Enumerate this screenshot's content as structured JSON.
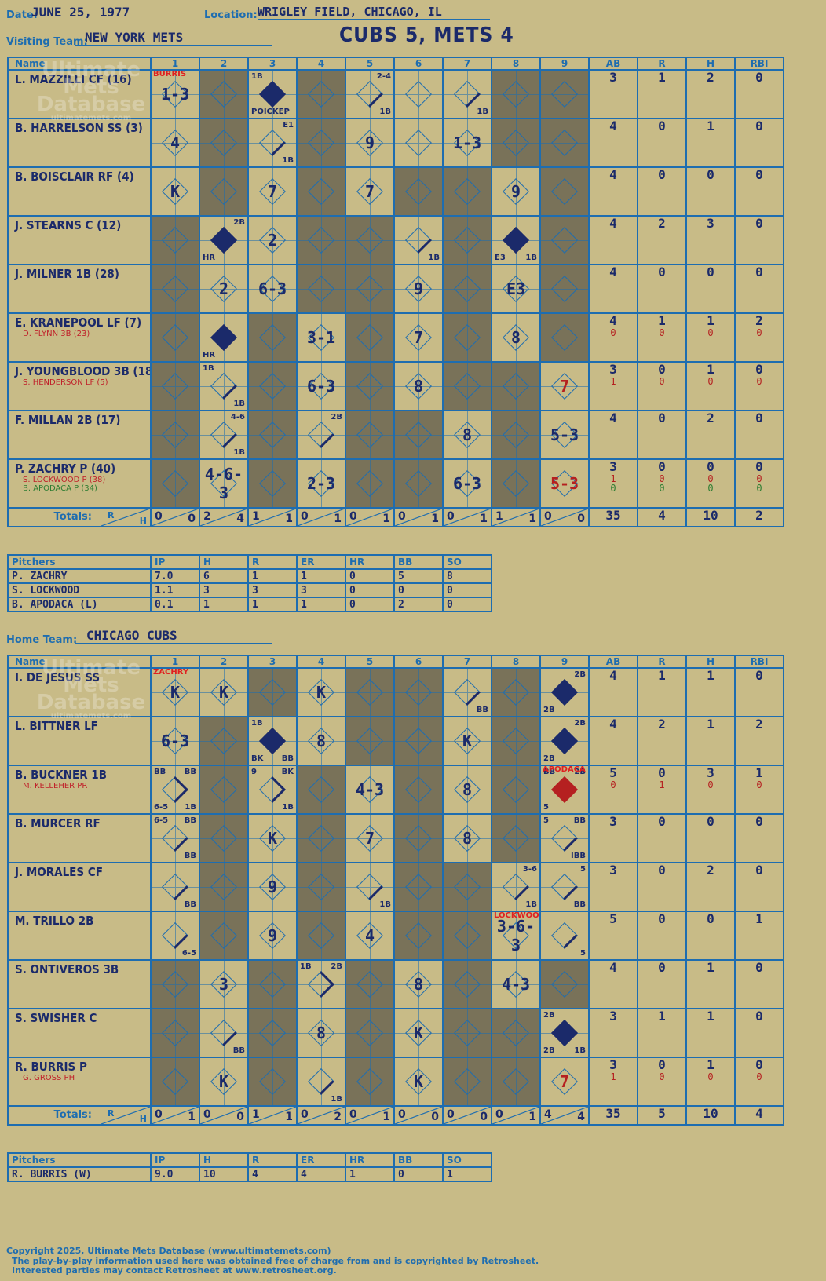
{
  "header": {
    "date_label": "Date:",
    "date": "JUNE 25, 1977",
    "location_label": "Location:",
    "location": "WRIGLEY FIELD, CHICAGO, IL",
    "visiting_label": "Visiting Team:",
    "visiting_team": "NEW YORK METS",
    "home_label": "Home Team:",
    "home_team": "CHICAGO CUBS",
    "title": "CUBS 5, METS 4"
  },
  "watermark": {
    "line1": "Ultimate",
    "line2": "Mets",
    "line3": "Database",
    "url": "ultimatemets.com"
  },
  "columns": {
    "name": "Name",
    "innings": [
      "1",
      "2",
      "3",
      "4",
      "5",
      "6",
      "7",
      "8",
      "9"
    ],
    "stats": [
      "AB",
      "R",
      "H",
      "RBI"
    ],
    "totals": "Totals:",
    "r": "R",
    "h": "H"
  },
  "visitors": {
    "players": [
      {
        "name": "L. MAZZILLI CF (16)",
        "subs": [],
        "ab": [
          "3"
        ],
        "r": [
          "1"
        ],
        "h": [
          "2"
        ],
        "rbi": [
          "0"
        ],
        "innings": [
          {
            "res": "1-3",
            "note": "BURRIS"
          },
          {
            "dark": true
          },
          {
            "dia": "fill",
            "tl": "1B",
            "bl": "POICKEP"
          },
          {
            "dark": true
          },
          {
            "dia": "b1",
            "tr": "2-4",
            "br": "1B"
          },
          {},
          {
            "dia": "b1",
            "br": "1B"
          },
          {
            "dark": true
          },
          {
            "dark": true
          }
        ]
      },
      {
        "name": "B. HARRELSON SS (3)",
        "subs": [],
        "ab": [
          "4"
        ],
        "r": [
          "0"
        ],
        "h": [
          "1"
        ],
        "rbi": [
          "0"
        ],
        "innings": [
          {
            "res": "4"
          },
          {
            "dark": true
          },
          {
            "dia": "b1",
            "tr": "E1",
            "br": "1B"
          },
          {
            "dark": true
          },
          {
            "res": "9"
          },
          {},
          {
            "res": "1-3"
          },
          {
            "dark": true
          },
          {
            "dark": true
          }
        ]
      },
      {
        "name": "B. BOISCLAIR RF (4)",
        "subs": [],
        "ab": [
          "4"
        ],
        "r": [
          "0"
        ],
        "h": [
          "0"
        ],
        "rbi": [
          "0"
        ],
        "innings": [
          {
            "res": "K"
          },
          {
            "dark": true
          },
          {
            "res": "7"
          },
          {
            "dark": true
          },
          {
            "res": "7"
          },
          {
            "dark": true
          },
          {
            "dark": true
          },
          {
            "res": "9"
          },
          {
            "dark": true
          }
        ]
      },
      {
        "name": "J. STEARNS C (12)",
        "subs": [],
        "ab": [
          "4"
        ],
        "r": [
          "2"
        ],
        "h": [
          "3"
        ],
        "rbi": [
          "0"
        ],
        "innings": [
          {
            "dark": true
          },
          {
            "dia": "fill",
            "tr": "2B",
            "bl": "HR"
          },
          {
            "res": "2"
          },
          {
            "dark": true
          },
          {
            "dark": true
          },
          {
            "dia": "b1",
            "br": "1B"
          },
          {
            "dark": true
          },
          {
            "dia": "fill",
            "bl": "E3",
            "br": "1B"
          },
          {
            "dark": true
          }
        ]
      },
      {
        "name": "J. MILNER 1B (28)",
        "subs": [],
        "ab": [
          "4"
        ],
        "r": [
          "0"
        ],
        "h": [
          "0"
        ],
        "rbi": [
          "0"
        ],
        "innings": [
          {
            "dark": true
          },
          {
            "res": "2"
          },
          {
            "res": "6-3"
          },
          {
            "dark": true
          },
          {
            "dark": true
          },
          {
            "res": "9"
          },
          {
            "dark": true
          },
          {
            "res": "E3"
          },
          {
            "dark": true
          }
        ]
      },
      {
        "name": "E. KRANEPOOL LF (7)",
        "subs": [
          "D. FLYNN 3B (23)"
        ],
        "ab": [
          "4",
          "0"
        ],
        "r": [
          "1",
          "0"
        ],
        "h": [
          "1",
          "0"
        ],
        "rbi": [
          "2",
          "0"
        ],
        "innings": [
          {
            "dark": true
          },
          {
            "dia": "fill",
            "bl": "HR"
          },
          {
            "dark": true
          },
          {
            "res": "3-1"
          },
          {
            "dark": true
          },
          {
            "res": "7"
          },
          {
            "dark": true
          },
          {
            "res": "8"
          },
          {
            "dark": true
          }
        ]
      },
      {
        "name": "J. YOUNGBLOOD 3B (18)",
        "subs": [
          "S. HENDERSON LF (5)"
        ],
        "ab": [
          "3",
          "1"
        ],
        "r": [
          "0",
          "0"
        ],
        "h": [
          "1",
          "0"
        ],
        "rbi": [
          "0",
          "0"
        ],
        "innings": [
          {
            "dark": true
          },
          {
            "dia": "b1",
            "tl": "1B",
            "br": "1B"
          },
          {
            "dark": true
          },
          {
            "res": "6-3"
          },
          {
            "dark": true
          },
          {
            "res": "8"
          },
          {
            "dark": true
          },
          {
            "dark": true
          },
          {
            "res": "7",
            "red": true
          }
        ]
      },
      {
        "name": "F. MILLAN 2B (17)",
        "subs": [],
        "ab": [
          "4"
        ],
        "r": [
          "0"
        ],
        "h": [
          "2"
        ],
        "rbi": [
          "0"
        ],
        "innings": [
          {
            "dark": true
          },
          {
            "dia": "b1",
            "tr": "4-6",
            "br": "1B"
          },
          {
            "dark": true
          },
          {
            "dia": "b1",
            "tr": "2B"
          },
          {
            "dark": true
          },
          {
            "dark": true
          },
          {
            "res": "8"
          },
          {
            "dark": true
          },
          {
            "res": "5-3"
          }
        ]
      },
      {
        "name": "P. ZACHRY P (40)",
        "subs": [
          "S. LOCKWOOD P (38)",
          "B. APODACA P (34)"
        ],
        "ab": [
          "3",
          "1",
          "0"
        ],
        "r": [
          "0",
          "0",
          "0"
        ],
        "h": [
          "0",
          "0",
          "0"
        ],
        "rbi": [
          "0",
          "0",
          "0"
        ],
        "innings": [
          {
            "dark": true
          },
          {
            "res": "4-6-3"
          },
          {
            "dark": true
          },
          {
            "res": "2-3"
          },
          {
            "dark": true
          },
          {
            "dark": true
          },
          {
            "res": "6-3"
          },
          {
            "dark": true
          },
          {
            "res": "5-3",
            "red": true
          }
        ]
      }
    ],
    "totals": {
      "innings": [
        [
          "0",
          "0"
        ],
        [
          "2",
          "4"
        ],
        [
          "1",
          "1"
        ],
        [
          "0",
          "1"
        ],
        [
          "0",
          "1"
        ],
        [
          "0",
          "1"
        ],
        [
          "0",
          "1"
        ],
        [
          "1",
          "1"
        ],
        [
          "0",
          "0"
        ]
      ],
      "ab": "35",
      "r": "4",
      "h": "10",
      "rbi": "2"
    },
    "pitchers_label": "Pitchers",
    "pitcher_cols": [
      "IP",
      "H",
      "R",
      "ER",
      "HR",
      "BB",
      "SO"
    ],
    "pitchers": [
      {
        "name": "P. ZACHRY",
        "ip": "7.0",
        "h": "6",
        "r": "1",
        "er": "1",
        "hr": "0",
        "bb": "5",
        "so": "8"
      },
      {
        "name": "S. LOCKWOOD",
        "ip": "1.1",
        "h": "3",
        "r": "3",
        "er": "3",
        "hr": "0",
        "bb": "0",
        "so": "0"
      },
      {
        "name": "B. APODACA (L)",
        "ip": "0.1",
        "h": "1",
        "r": "1",
        "er": "1",
        "hr": "0",
        "bb": "2",
        "so": "0"
      }
    ]
  },
  "home": {
    "players": [
      {
        "name": "I. DE JESUS SS",
        "subs": [],
        "ab": [
          "4"
        ],
        "r": [
          "1"
        ],
        "h": [
          "1"
        ],
        "rbi": [
          "0"
        ],
        "innings": [
          {
            "res": "K",
            "note": "ZACHRY"
          },
          {
            "res": "K"
          },
          {
            "dark": true
          },
          {
            "res": "K"
          },
          {
            "dark": true
          },
          {
            "dark": true
          },
          {
            "dia": "b1",
            "br": "BB"
          },
          {
            "dark": true
          },
          {
            "dia": "fill",
            "tr": "2B",
            "bl": "2B"
          }
        ]
      },
      {
        "name": "L. BITTNER LF",
        "subs": [],
        "ab": [
          "4"
        ],
        "r": [
          "2"
        ],
        "h": [
          "1"
        ],
        "rbi": [
          "2"
        ],
        "innings": [
          {
            "res": "6-3"
          },
          {
            "dark": true
          },
          {
            "dia": "fill",
            "tl": "1B",
            "bl": "BK",
            "br": "BB"
          },
          {
            "res": "8"
          },
          {
            "dark": true
          },
          {
            "dark": true
          },
          {
            "res": "K"
          },
          {
            "dark": true
          },
          {
            "dia": "fill",
            "tr": "2B",
            "bl": "2B"
          }
        ]
      },
      {
        "name": "B. BUCKNER 1B",
        "subs": [
          "M. KELLEHER PR"
        ],
        "ab": [
          "5",
          "0"
        ],
        "r": [
          "0",
          "1"
        ],
        "h": [
          "3",
          "0"
        ],
        "rbi": [
          "1",
          "0"
        ],
        "innings": [
          {
            "dia": "b2",
            "tl": "BB",
            "tr": "BB",
            "bl": "6-5",
            "br": "1B"
          },
          {
            "dark": true
          },
          {
            "dia": "b2",
            "tl": "9",
            "tr": "BK",
            "br": "1B"
          },
          {
            "dark": true
          },
          {
            "res": "4-3"
          },
          {
            "dark": true
          },
          {
            "res": "8"
          },
          {
            "dark": true
          },
          {
            "dia": "red",
            "tl": "BB",
            "tr": "2B",
            "bl": "5",
            "note": "APODACA"
          }
        ]
      },
      {
        "name": "B. MURCER RF",
        "subs": [],
        "ab": [
          "3"
        ],
        "r": [
          "0"
        ],
        "h": [
          "0"
        ],
        "rbi": [
          "0"
        ],
        "innings": [
          {
            "dia": "b1",
            "tl": "6-5",
            "tr": "BB",
            "br": "BB"
          },
          {
            "dark": true
          },
          {
            "res": "K"
          },
          {
            "dark": true
          },
          {
            "res": "7"
          },
          {
            "dark": true
          },
          {
            "res": "8"
          },
          {
            "dark": true
          },
          {
            "dia": "b1",
            "tl": "5",
            "tr": "BB",
            "br": "IBB"
          }
        ]
      },
      {
        "name": "J. MORALES CF",
        "subs": [],
        "ab": [
          "3"
        ],
        "r": [
          "0"
        ],
        "h": [
          "2"
        ],
        "rbi": [
          "0"
        ],
        "innings": [
          {
            "dia": "b1",
            "br": "BB"
          },
          {
            "dark": true
          },
          {
            "res": "9"
          },
          {
            "dark": true
          },
          {
            "dia": "b1",
            "br": "1B"
          },
          {
            "dark": true
          },
          {
            "dark": true
          },
          {
            "dia": "b1",
            "tr": "3-6",
            "br": "1B"
          },
          {
            "dia": "b1",
            "tr": "5",
            "br": "BB"
          }
        ]
      },
      {
        "name": "M. TRILLO 2B",
        "subs": [],
        "ab": [
          "5"
        ],
        "r": [
          "0"
        ],
        "h": [
          "0"
        ],
        "rbi": [
          "1"
        ],
        "innings": [
          {
            "dia": "b1",
            "br": "6-5"
          },
          {
            "dark": true
          },
          {
            "res": "9"
          },
          {
            "dark": true
          },
          {
            "res": "4"
          },
          {
            "dark": true
          },
          {
            "dark": true
          },
          {
            "res": "3-6-3",
            "note": "LOCKWOOD"
          },
          {
            "dia": "b1",
            "br": "5"
          }
        ]
      },
      {
        "name": "S. ONTIVEROS 3B",
        "subs": [],
        "ab": [
          "4"
        ],
        "r": [
          "0"
        ],
        "h": [
          "1"
        ],
        "rbi": [
          "0"
        ],
        "innings": [
          {
            "dark": true
          },
          {
            "res": "3"
          },
          {
            "dark": true
          },
          {
            "dia": "b2",
            "tl": "1B",
            "tr": "2B"
          },
          {
            "dark": true
          },
          {
            "res": "8"
          },
          {
            "dark": true
          },
          {
            "res": "4-3"
          },
          {
            "dark": true
          }
        ]
      },
      {
        "name": "S. SWISHER C",
        "subs": [],
        "ab": [
          "3"
        ],
        "r": [
          "1"
        ],
        "h": [
          "1"
        ],
        "rbi": [
          "0"
        ],
        "innings": [
          {
            "dark": true
          },
          {
            "dia": "b1",
            "br": "BB"
          },
          {
            "dark": true
          },
          {
            "res": "8"
          },
          {
            "dark": true
          },
          {
            "res": "K"
          },
          {
            "dark": true
          },
          {
            "dark": true
          },
          {
            "dia": "fill",
            "tl": "2B",
            "bl": "2B",
            "br": "1B"
          }
        ]
      },
      {
        "name": "R. BURRIS P",
        "subs": [
          "G. GROSS PH"
        ],
        "ab": [
          "3",
          "1"
        ],
        "r": [
          "0",
          "0"
        ],
        "h": [
          "1",
          "0"
        ],
        "rbi": [
          "0",
          "0"
        ],
        "innings": [
          {
            "dark": true
          },
          {
            "res": "K"
          },
          {
            "dark": true
          },
          {
            "dia": "b1",
            "br": "1B"
          },
          {
            "dark": true
          },
          {
            "res": "K"
          },
          {
            "dark": true
          },
          {
            "dark": true
          },
          {
            "res": "7",
            "red": true
          }
        ]
      }
    ],
    "totals": {
      "innings": [
        [
          "0",
          "1"
        ],
        [
          "0",
          "0"
        ],
        [
          "1",
          "1"
        ],
        [
          "0",
          "2"
        ],
        [
          "0",
          "1"
        ],
        [
          "0",
          "0"
        ],
        [
          "0",
          "0"
        ],
        [
          "0",
          "1"
        ],
        [
          "4",
          "4"
        ]
      ],
      "ab": "35",
      "r": "5",
      "h": "10",
      "rbi": "4"
    },
    "pitchers_label": "Pitchers",
    "pitcher_cols": [
      "IP",
      "H",
      "R",
      "ER",
      "HR",
      "BB",
      "SO"
    ],
    "pitchers": [
      {
        "name": "R. BURRIS (W)",
        "ip": "9.0",
        "h": "10",
        "r": "4",
        "er": "4",
        "hr": "1",
        "bb": "0",
        "so": "1"
      }
    ]
  },
  "footer": {
    "line1": "Copyright 2025, Ultimate Mets Database (www.ultimatemets.com)",
    "line2": "The play-by-play information used here was obtained free of charge from and is copyrighted by Retrosheet.",
    "line3": "Interested parties may contact Retrosheet at www.retrosheet.org."
  }
}
